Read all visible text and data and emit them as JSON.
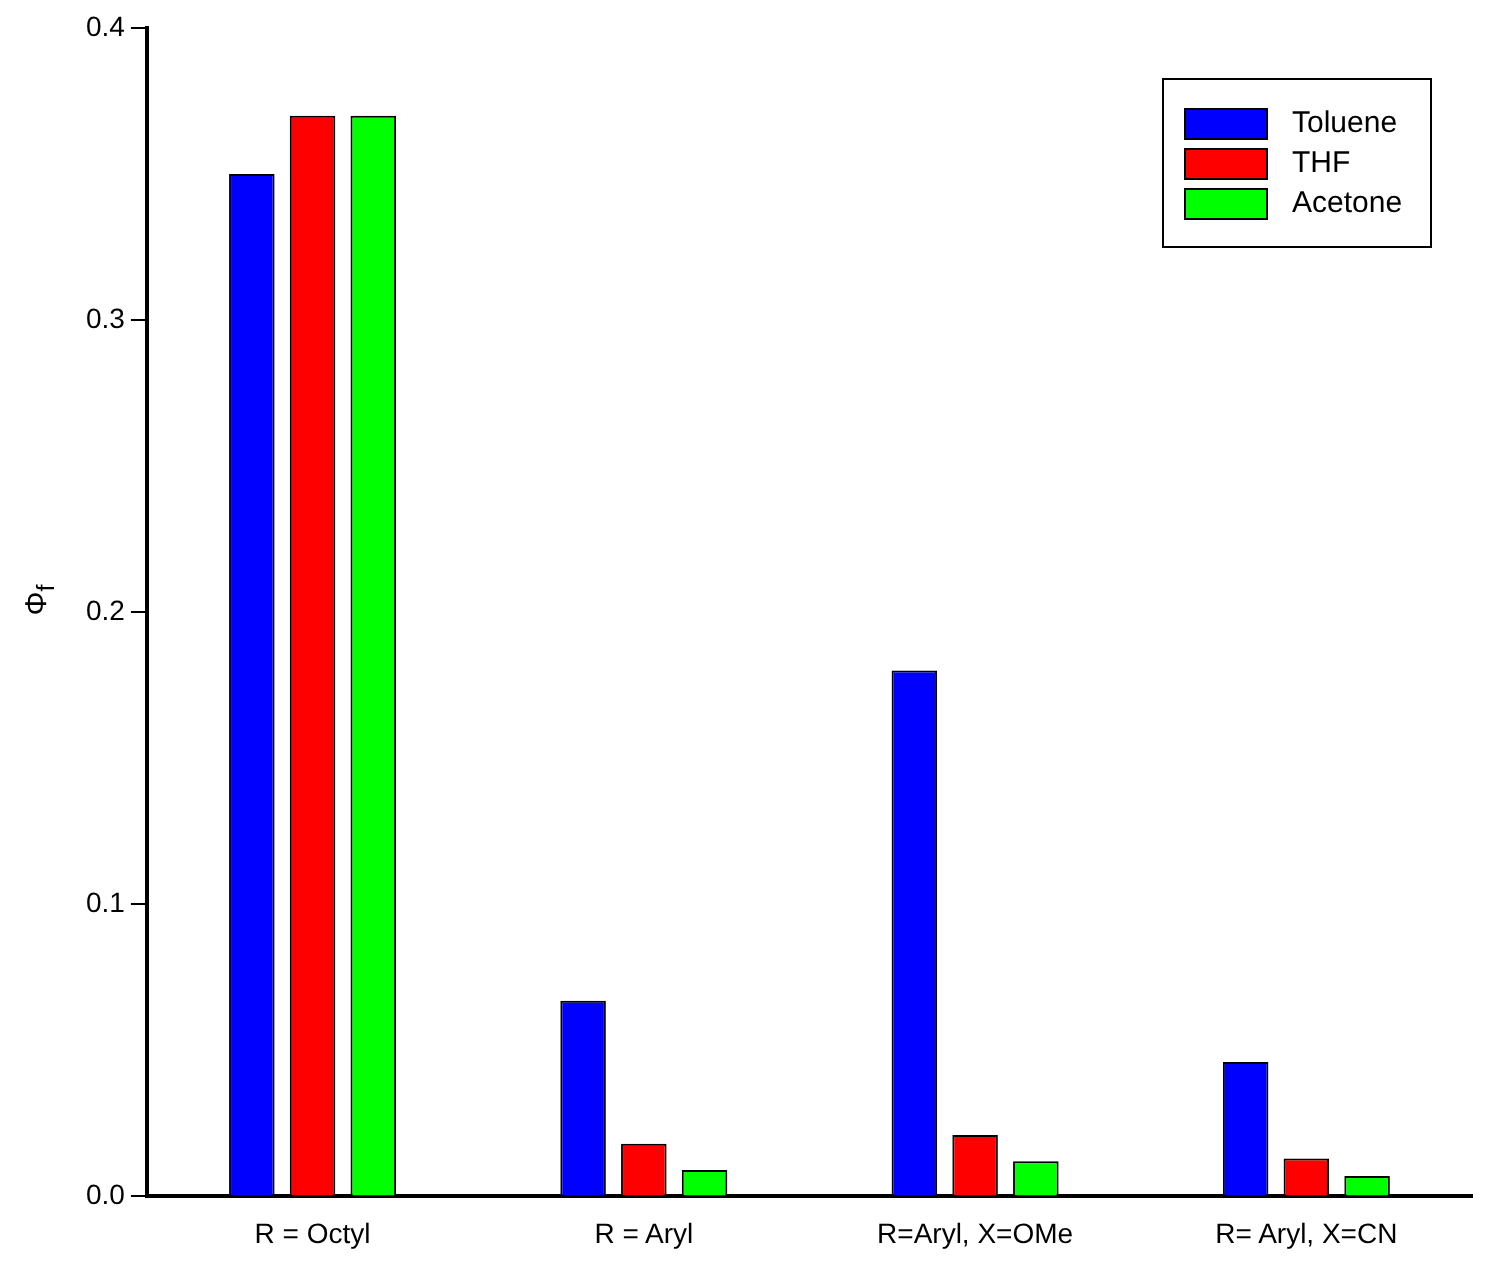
{
  "chart_data": {
    "type": "bar",
    "ylabel": "Φ$_{f}$",
    "categories": [
      "R = Octyl",
      "R = Aryl",
      "R=Aryl, X=OMe",
      "R= Aryl, X=CN"
    ],
    "series": [
      {
        "name": "Toluene",
        "color": "#0000ff",
        "values": [
          0.35,
          0.067,
          0.18,
          0.046
        ]
      },
      {
        "name": "THF",
        "color": "#ff0000",
        "values": [
          0.37,
          0.018,
          0.021,
          0.013
        ]
      },
      {
        "name": "Acetone",
        "color": "#00ff00",
        "values": [
          0.37,
          0.009,
          0.012,
          0.007
        ]
      }
    ],
    "ylim": [
      0,
      0.4
    ],
    "yticks": [
      {
        "value": 0,
        "label": "0.0"
      },
      {
        "value": 0.1,
        "label": "0.1"
      },
      {
        "value": 0.2,
        "label": "0.2"
      },
      {
        "value": 0.3,
        "label": "0.3"
      },
      {
        "value": 0.4,
        "label": "0.4"
      }
    ],
    "grid": false,
    "legend": "top right"
  }
}
